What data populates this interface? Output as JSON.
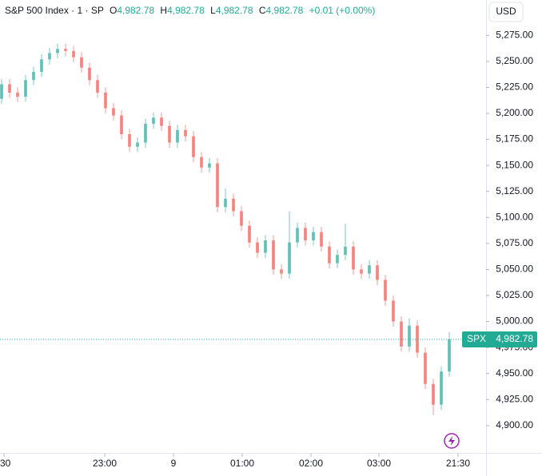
{
  "chart_data": {
    "type": "candlestick",
    "legend": {
      "symbol": "S&P 500 Index · 1 · SP",
      "open_key": "O",
      "open": "4,982.78",
      "high_key": "H",
      "high": "4,982.78",
      "low_key": "L",
      "low": "4,982.78",
      "close_key": "C",
      "close": "4,982.78",
      "change": "+0.01 (+0.00%)"
    },
    "currency": "USD",
    "up_color": "#26a69a",
    "down_color": "#ef5350",
    "x": [
      0,
      1,
      2,
      3,
      4,
      5,
      6,
      7,
      8,
      9,
      10,
      11,
      12,
      13,
      14,
      15,
      16,
      17,
      18,
      19,
      20,
      21,
      22,
      23,
      24,
      25,
      26,
      27,
      28,
      29,
      30,
      31,
      32,
      33,
      34,
      35,
      36,
      37,
      38,
      39,
      40,
      41,
      42,
      43,
      44,
      45,
      46,
      47,
      48,
      49,
      50,
      51,
      52,
      53,
      54,
      55,
      56
    ],
    "open": [
      5214,
      5228,
      5220,
      5216,
      5232,
      5240,
      5252,
      5258,
      5262,
      5260,
      5254,
      5244,
      5232,
      5220,
      5205,
      5198,
      5180,
      5168,
      5172,
      5190,
      5196,
      5188,
      5172,
      5184,
      5178,
      5158,
      5148,
      5152,
      5110,
      5118,
      5106,
      5092,
      5076,
      5066,
      5078,
      5050,
      5046,
      5076,
      5090,
      5078,
      5086,
      5072,
      5056,
      5064,
      5072,
      5050,
      5046,
      5054,
      5040,
      5020,
      5000,
      4976,
      4996,
      4970,
      4940,
      4920,
      4952
    ],
    "high": [
      5233,
      5233,
      5225,
      5237,
      5245,
      5257,
      5263,
      5267,
      5267,
      5265,
      5259,
      5249,
      5237,
      5225,
      5210,
      5203,
      5185,
      5177,
      5195,
      5201,
      5201,
      5193,
      5189,
      5189,
      5183,
      5163,
      5157,
      5157,
      5128,
      5123,
      5111,
      5097,
      5081,
      5083,
      5083,
      5055,
      5106,
      5095,
      5095,
      5091,
      5091,
      5077,
      5069,
      5094,
      5077,
      5055,
      5059,
      5059,
      5045,
      5025,
      5005,
      5003,
      5001,
      4975,
      4945,
      4957,
      4990
    ],
    "low": [
      5209,
      5215,
      5211,
      5211,
      5227,
      5235,
      5247,
      5253,
      5255,
      5249,
      5239,
      5227,
      5215,
      5200,
      5193,
      5175,
      5163,
      5163,
      5167,
      5185,
      5183,
      5167,
      5167,
      5173,
      5153,
      5143,
      5143,
      5105,
      5105,
      5101,
      5087,
      5071,
      5061,
      5061,
      5045,
      5041,
      5041,
      5071,
      5073,
      5073,
      5067,
      5051,
      5051,
      5059,
      5045,
      5041,
      5041,
      5035,
      5015,
      4995,
      4971,
      4971,
      4965,
      4935,
      4910,
      4915,
      4947
    ],
    "close": [
      5228,
      5220,
      5216,
      5232,
      5240,
      5252,
      5258,
      5262,
      5260,
      5254,
      5244,
      5232,
      5220,
      5205,
      5198,
      5180,
      5168,
      5172,
      5190,
      5196,
      5188,
      5172,
      5184,
      5178,
      5158,
      5148,
      5152,
      5110,
      5118,
      5106,
      5092,
      5076,
      5066,
      5078,
      5050,
      5046,
      5076,
      5090,
      5078,
      5086,
      5072,
      5056,
      5064,
      5072,
      5050,
      5046,
      5054,
      5040,
      5020,
      5000,
      4976,
      4996,
      4970,
      4940,
      4920,
      4952,
      4982.78
    ],
    "xlim": [
      -0.2,
      60.6
    ],
    "xticks": [
      {
        "value": 0.3,
        "label": ":30"
      },
      {
        "value": 12.9,
        "label": "23:00"
      },
      {
        "value": 21.5,
        "label": "9"
      },
      {
        "value": 30.1,
        "label": "01:00"
      },
      {
        "value": 38.7,
        "label": "02:00"
      },
      {
        "value": 47.2,
        "label": "03:00"
      },
      {
        "value": 57.1,
        "label": "21:30"
      }
    ],
    "ylim": [
      4873,
      5309
    ],
    "yticks": [
      {
        "value": 4900,
        "label": "4,900.00"
      },
      {
        "value": 4925,
        "label": "4,925.00"
      },
      {
        "value": 4950,
        "label": "4,950.00"
      },
      {
        "value": 4975,
        "label": "4,975.00"
      },
      {
        "value": 5000,
        "label": "5,000.00"
      },
      {
        "value": 5025,
        "label": "5,025.00"
      },
      {
        "value": 5050,
        "label": "5,050.00"
      },
      {
        "value": 5075,
        "label": "5,075.00"
      },
      {
        "value": 5100,
        "label": "5,100.00"
      },
      {
        "value": 5125,
        "label": "5,125.00"
      },
      {
        "value": 5150,
        "label": "5,150.00"
      },
      {
        "value": 5175,
        "label": "5,175.00"
      },
      {
        "value": 5200,
        "label": "5,200.00"
      },
      {
        "value": 5225,
        "label": "5,225.00"
      },
      {
        "value": 5250,
        "label": "5,250.00"
      },
      {
        "value": 5275,
        "label": "5,275.00"
      }
    ],
    "last_price": {
      "value": 4982.78,
      "label": "4,982.78"
    },
    "last_symbol": "SPX",
    "last_color": "#22ab94",
    "grid": false
  }
}
